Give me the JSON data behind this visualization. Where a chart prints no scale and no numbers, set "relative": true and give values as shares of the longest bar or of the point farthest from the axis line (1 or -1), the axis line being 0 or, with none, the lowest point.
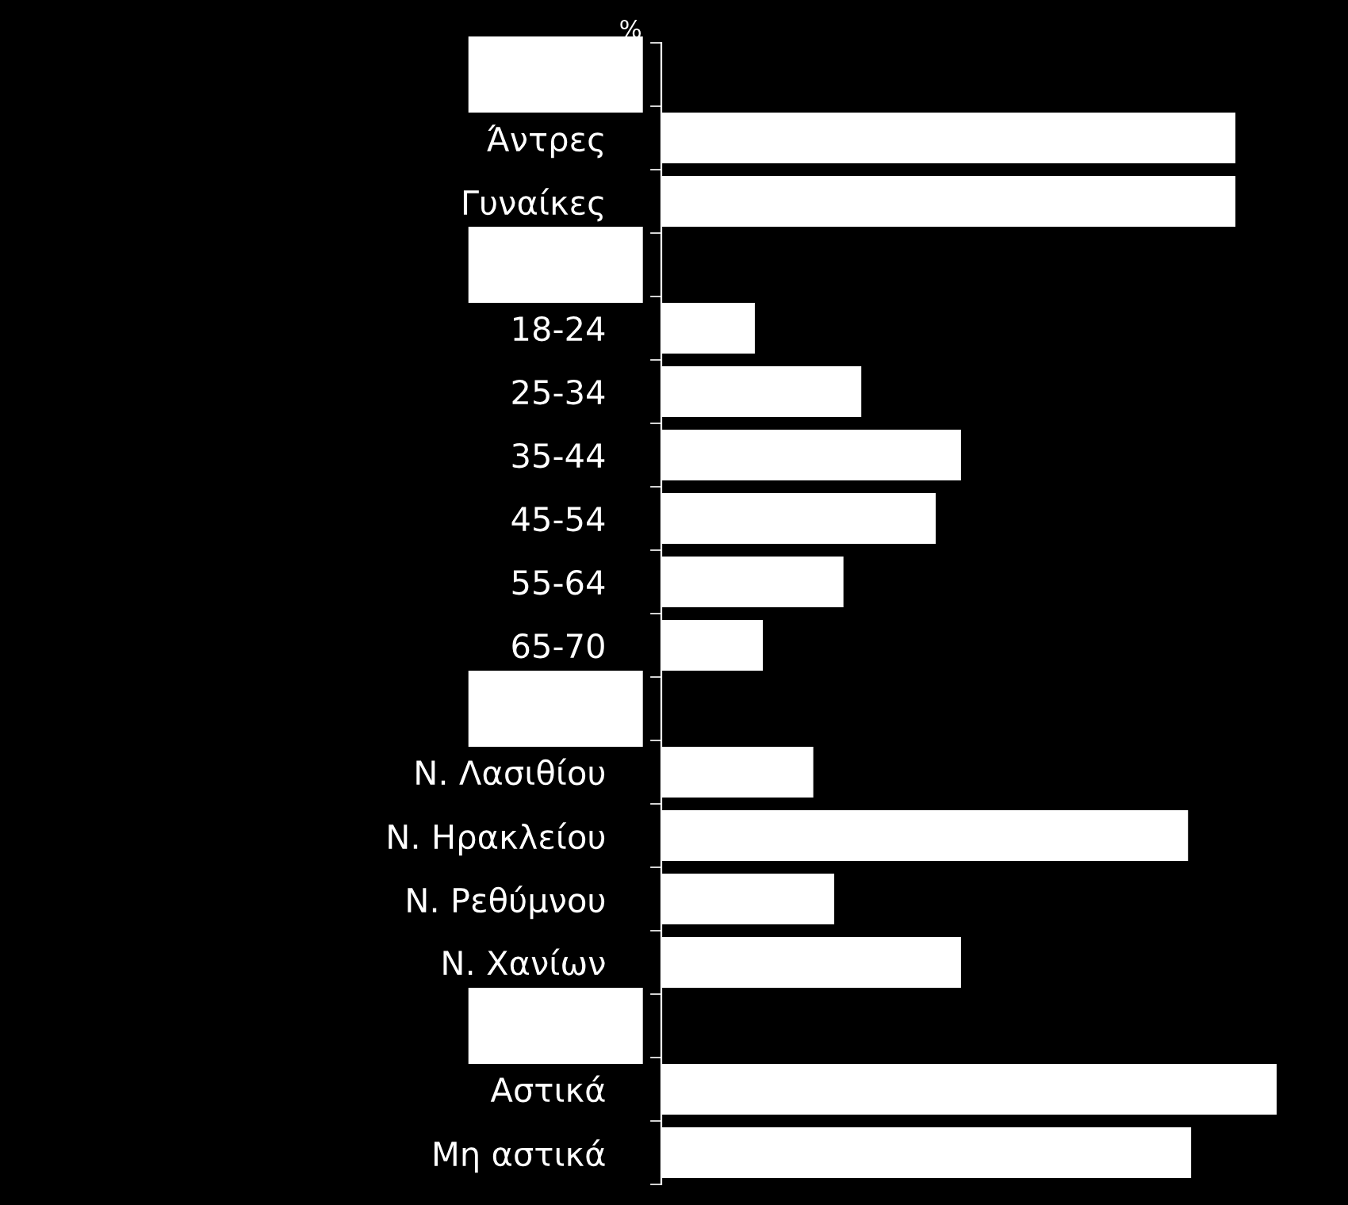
{
  "chart_data": {
    "type": "bar",
    "orientation": "horizontal",
    "relative": true,
    "color": "#ffffff",
    "categories": [
      null,
      "Άντρες",
      "Γυναίκες",
      null,
      "18-24",
      "25-34",
      "35-44",
      "45-54",
      "55-64",
      "65-70",
      null,
      "Ν. Λασιθίου",
      "Ν. Ηρακλείου",
      "Ν. Ρεθύμνου",
      "Ν. Χανίων",
      null,
      "Αστικά",
      "Μη αστικά"
    ],
    "values": [
      null,
      0.933,
      0.933,
      null,
      0.152,
      0.325,
      0.487,
      0.446,
      0.296,
      0.165,
      null,
      0.247,
      0.856,
      0.281,
      0.487,
      null,
      1,
      0.861
    ],
    "annotations": [
      "%"
    ],
    "grid": false,
    "legend": false
  }
}
